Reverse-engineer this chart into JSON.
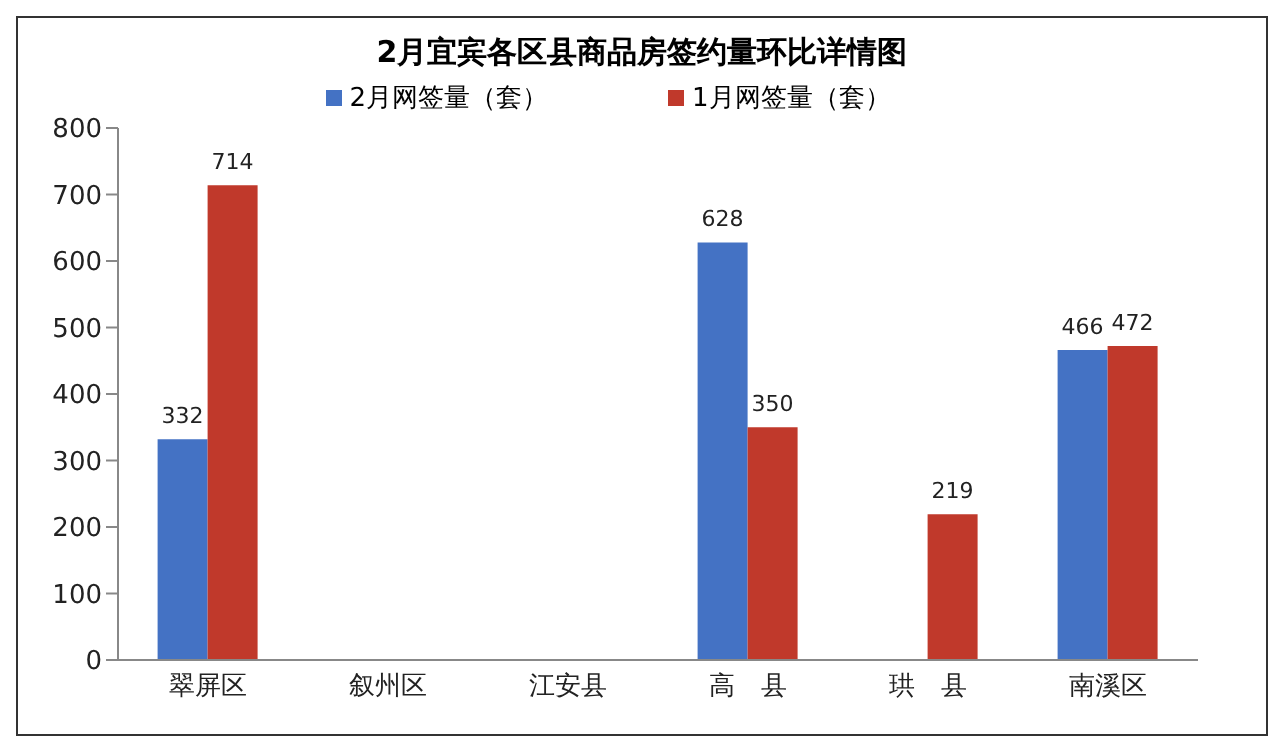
{
  "chart_data": {
    "type": "bar",
    "title": "2月宜宾各区县商品房签约量环比详情图",
    "categories": [
      "翠屏区",
      "叙州区",
      "江安县",
      "高　县",
      "珙　县",
      "南溪区"
    ],
    "series": [
      {
        "name": "2月网签量（套）",
        "color": "#4472c4",
        "values": [
          332,
          null,
          null,
          628,
          null,
          466
        ]
      },
      {
        "name": "1月网签量（套）",
        "color": "#c0392b",
        "values": [
          714,
          null,
          null,
          350,
          219,
          472
        ]
      }
    ],
    "ylim": [
      0,
      800
    ],
    "yticks": [
      0,
      100,
      200,
      300,
      400,
      500,
      600,
      700,
      800
    ],
    "grid": false,
    "legend": "top",
    "data_labels": true
  }
}
